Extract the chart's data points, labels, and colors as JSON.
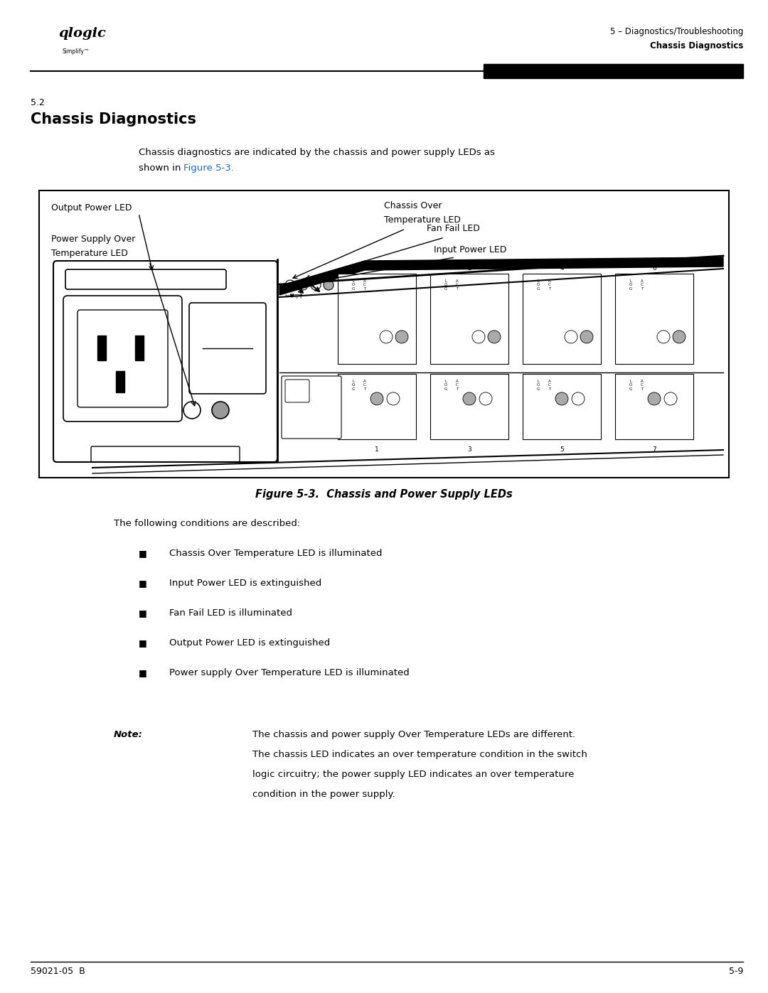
{
  "page_width": 10.8,
  "page_height": 13.97,
  "bg_color": "#ffffff",
  "header_right_line1": "5 – Diagnostics/Troubleshooting",
  "header_right_line2": "Chassis Diagnostics",
  "section_num": "5.2",
  "section_title": "Chassis Diagnostics",
  "intro_line1": "Chassis diagnostics are indicated by the chassis and power supply LEDs as",
  "intro_line2_plain": "shown in ",
  "intro_line2_link": "Figure 5-3.",
  "figure_caption": "Figure 5-3.  Chassis and Power Supply LEDs",
  "conditions_intro": "The following conditions are described:",
  "bullet_items": [
    "Chassis Over Temperature LED is illuminated",
    "Input Power LED is extinguished",
    "Fan Fail LED is illuminated",
    "Output Power LED is extinguished",
    "Power supply Over Temperature LED is illuminated"
  ],
  "note_label": "Note:",
  "note_lines": [
    "The chassis and power supply Over Temperature LEDs are different.",
    "The chassis LED indicates an over temperature condition in the switch",
    "logic circuitry; the power supply LED indicates an over temperature",
    "condition in the power supply."
  ],
  "footer_left": "59021-05  B",
  "footer_right": "5-9",
  "blue_color": "#1a6bcc",
  "label_output_power": "Output Power LED",
  "label_chassis_over_temp_l1": "Chassis Over",
  "label_chassis_over_temp_l2": "Temperature LED",
  "label_fan_fail": "Fan Fail LED",
  "label_input_power": "Input Power LED",
  "label_ps_over_temp_l1": "Power Supply Over",
  "label_ps_over_temp_l2": "Temperature LED"
}
